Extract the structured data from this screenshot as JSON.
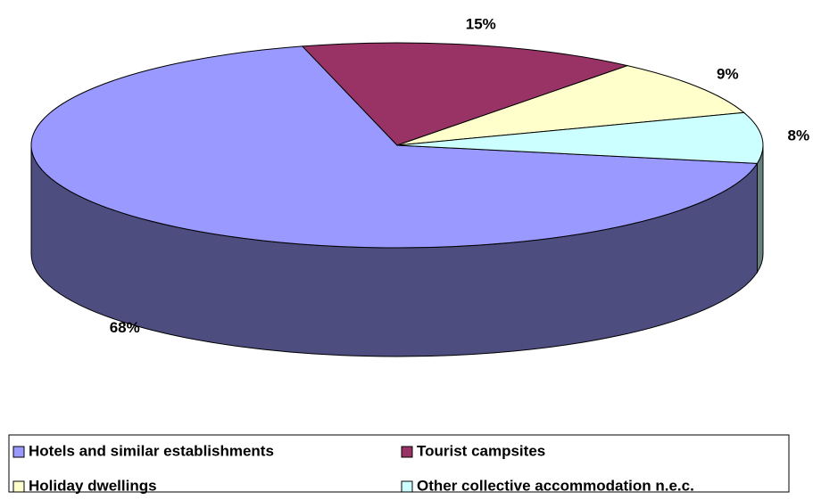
{
  "chart_data": {
    "type": "pie3d",
    "categories": [
      "Hotels and similar establishments",
      "Tourist campsites",
      "Holiday dwellings",
      "Other collective accommodation n.e.c."
    ],
    "values": [
      68,
      15,
      9,
      8
    ],
    "value_labels": [
      "68%",
      "15%",
      "9%",
      "8%"
    ],
    "colors": [
      "#9999ff",
      "#993366",
      "#ffffcc",
      "#ccffff"
    ],
    "legend": "bottom"
  }
}
